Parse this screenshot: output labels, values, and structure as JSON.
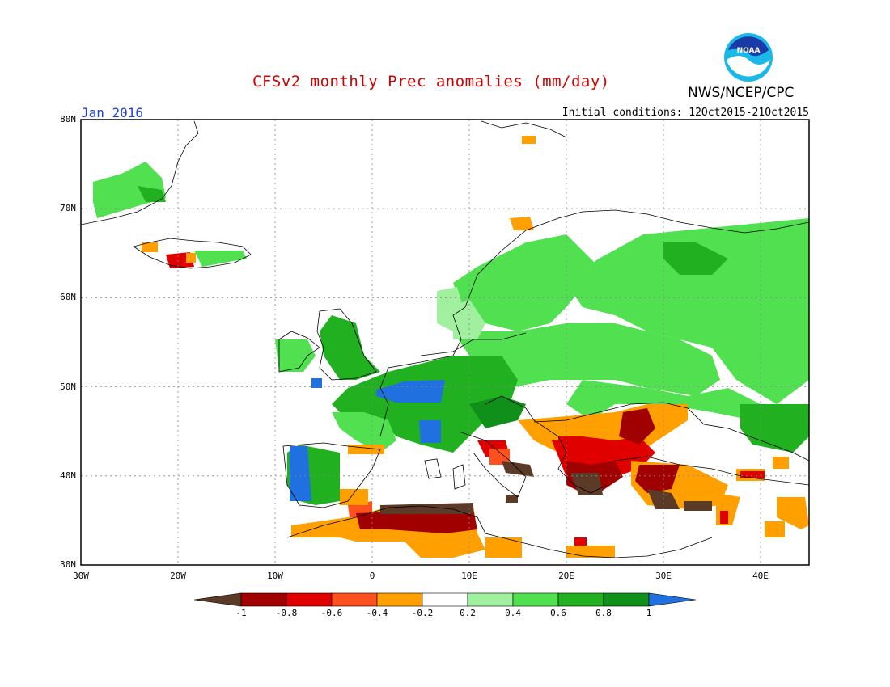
{
  "title": "CFSv2 monthly Prec anomalies (mm/day)",
  "month": "Jan 2016",
  "initial_conditions": "Initial conditions: 12Oct2015-21Oct2015",
  "agency": "NWS/NCEP/CPC",
  "logo_text": "NOAA",
  "lat_labels": [
    "80N",
    "70N",
    "60N",
    "50N",
    "40N",
    "30N"
  ],
  "lon_labels": [
    "30W",
    "20W",
    "10W",
    "0",
    "10E",
    "20E",
    "30E",
    "40E"
  ],
  "colorbar": {
    "labels": [
      "-1",
      "-0.8",
      "-0.6",
      "-0.4",
      "-0.2",
      "0.2",
      "0.4",
      "0.6",
      "0.8",
      "1"
    ],
    "colors": [
      "#5c3a28",
      "#a00000",
      "#e00000",
      "#ff5020",
      "#ffa000",
      "#ffffff",
      "#a0f0a0",
      "#50e050",
      "#20b020",
      "#10901a",
      "#2070e0"
    ]
  }
}
